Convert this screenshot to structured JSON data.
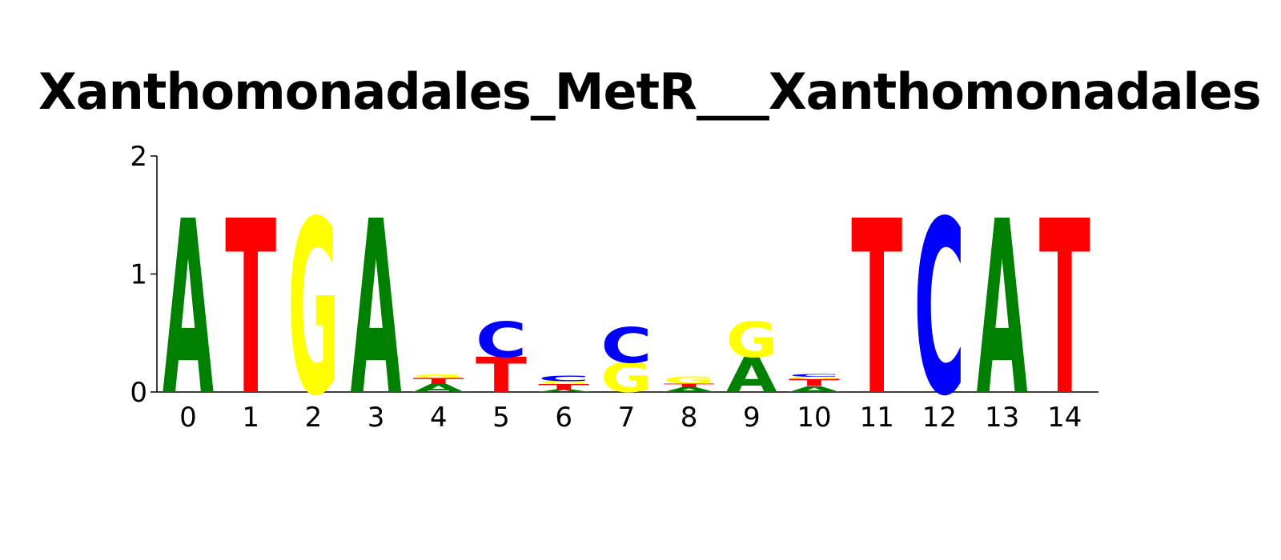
{
  "chart_data": {
    "type": "sequence-logo",
    "title": "Xanthomonadales_MetR___Xanthomonadales",
    "xlabel": "",
    "ylabel": "",
    "ylim": [
      0,
      2
    ],
    "yticks": [
      "0",
      "1",
      "2"
    ],
    "positions": [
      "0",
      "1",
      "2",
      "3",
      "4",
      "5",
      "6",
      "7",
      "8",
      "9",
      "10",
      "11",
      "12",
      "13",
      "14"
    ],
    "colors": {
      "A": "#008000",
      "C": "#0000ff",
      "G": "#ffff00",
      "T": "#ff0000"
    },
    "stacks": [
      [
        {
          "base": "A",
          "height": 1.48
        }
      ],
      [
        {
          "base": "T",
          "height": 1.48
        }
      ],
      [
        {
          "base": "G",
          "height": 1.48
        }
      ],
      [
        {
          "base": "A",
          "height": 1.48
        }
      ],
      [
        {
          "base": "A",
          "height": 0.07
        },
        {
          "base": "T",
          "height": 0.05
        },
        {
          "base": "G",
          "height": 0.03
        }
      ],
      [
        {
          "base": "T",
          "height": 0.3
        },
        {
          "base": "C",
          "height": 0.3
        }
      ],
      [
        {
          "base": "A",
          "height": 0.02
        },
        {
          "base": "T",
          "height": 0.05
        },
        {
          "base": "G",
          "height": 0.02
        },
        {
          "base": "C",
          "height": 0.05
        }
      ],
      [
        {
          "base": "G",
          "height": 0.25
        },
        {
          "base": "C",
          "height": 0.3
        }
      ],
      [
        {
          "base": "A",
          "height": 0.04
        },
        {
          "base": "T",
          "height": 0.03
        },
        {
          "base": "G",
          "height": 0.06
        }
      ],
      [
        {
          "base": "A",
          "height": 0.3
        },
        {
          "base": "G",
          "height": 0.3
        }
      ],
      [
        {
          "base": "A",
          "height": 0.05
        },
        {
          "base": "T",
          "height": 0.06
        },
        {
          "base": "G",
          "height": 0.02
        },
        {
          "base": "C",
          "height": 0.02
        }
      ],
      [
        {
          "base": "T",
          "height": 1.48
        }
      ],
      [
        {
          "base": "C",
          "height": 1.48
        }
      ],
      [
        {
          "base": "A",
          "height": 1.48
        }
      ],
      [
        {
          "base": "T",
          "height": 1.48
        }
      ]
    ]
  }
}
